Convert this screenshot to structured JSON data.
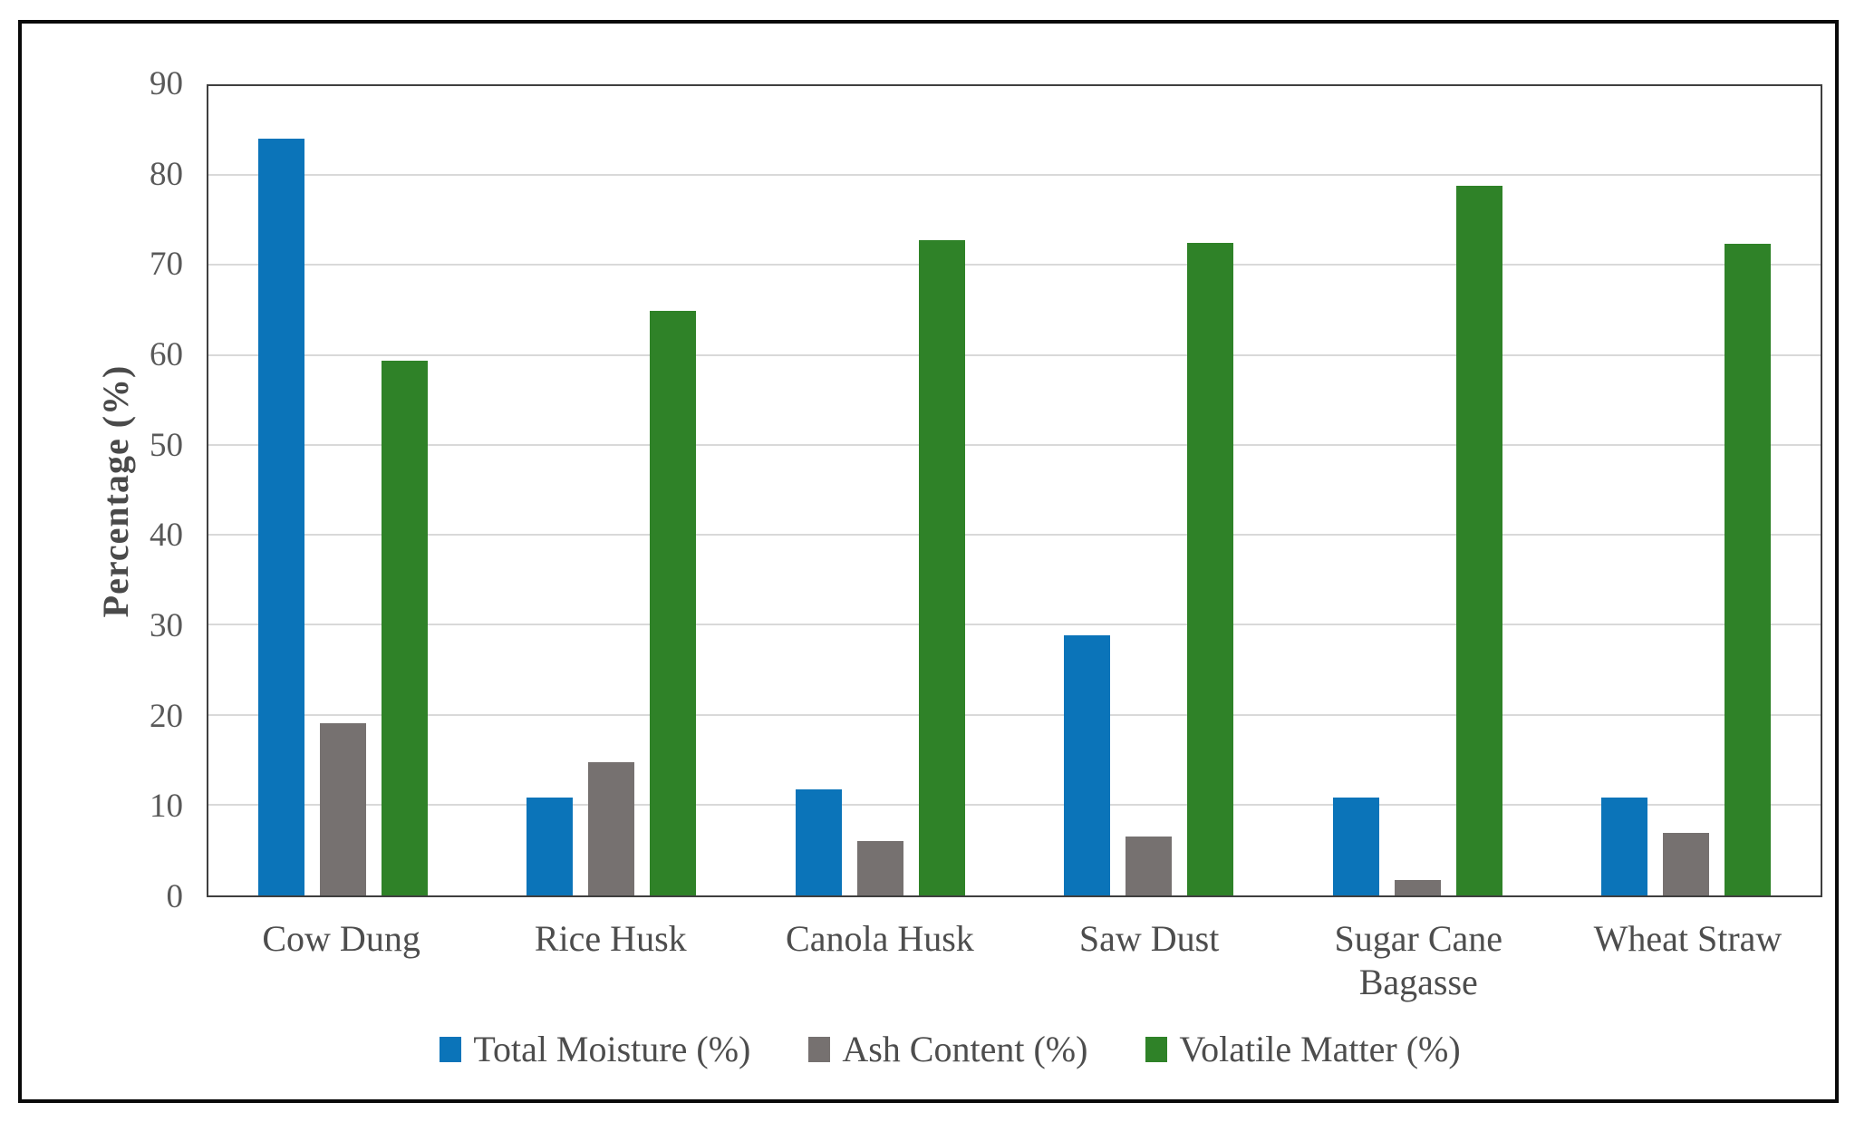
{
  "figure": {
    "background_color": "#ffffff",
    "frame_border_color": "#0a0a0a",
    "axis_border_color": "#3f3f3f",
    "gridline_color": "#d9d9d9",
    "text_color": "#4d4d4d",
    "tick_text_color": "#595959"
  },
  "y_axis": {
    "title": "Percentage (%)"
  },
  "chart_data": {
    "type": "bar",
    "title": "",
    "xlabel": "",
    "ylabel": "Percentage (%)",
    "ylim": [
      0,
      90
    ],
    "yticks": [
      0,
      10,
      20,
      30,
      40,
      50,
      60,
      70,
      80,
      90
    ],
    "grid": true,
    "legend_position": "bottom",
    "categories": [
      "Cow Dung",
      "Rice Husk",
      "Canola Husk",
      "Saw Dust",
      "Sugar Cane Bagasse",
      "Wheat Straw"
    ],
    "series": [
      {
        "name": "Total Moisture (%)",
        "color": "#0B74B9",
        "values": [
          84.2,
          10.9,
          11.8,
          28.9,
          10.9,
          10.9
        ]
      },
      {
        "name": "Ash Content (%)",
        "color": "#767170",
        "values": [
          19.2,
          14.8,
          6.0,
          6.6,
          1.7,
          7.0
        ]
      },
      {
        "name": "Volatile Matter (%)",
        "color": "#2F8228",
        "values": [
          59.5,
          65.0,
          72.9,
          72.6,
          78.9,
          72.5
        ]
      }
    ]
  }
}
